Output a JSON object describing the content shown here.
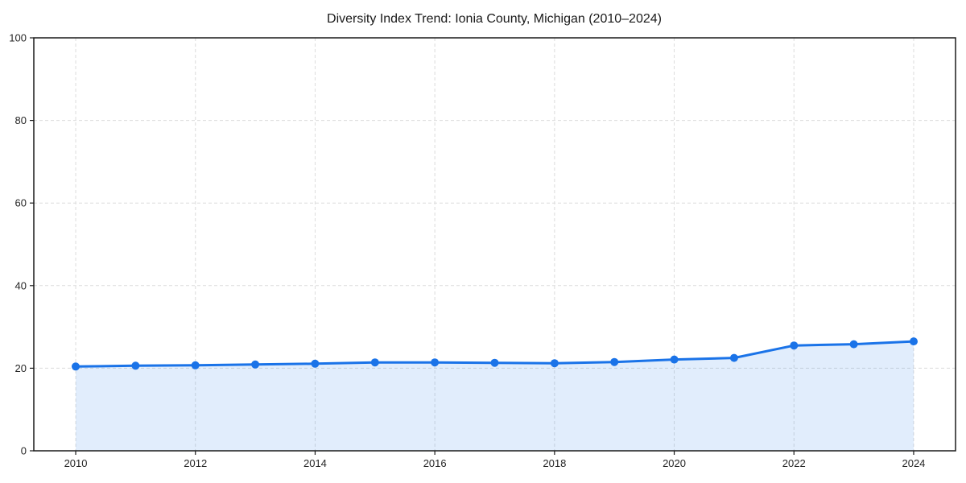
{
  "chart_data": {
    "type": "line",
    "title": "Diversity Index Trend: Ionia County, Michigan (2010–2024)",
    "xlabel": "",
    "ylabel": "",
    "x": [
      2010,
      2011,
      2012,
      2013,
      2014,
      2015,
      2016,
      2017,
      2018,
      2019,
      2020,
      2021,
      2022,
      2023,
      2024
    ],
    "series": [
      {
        "name": "Diversity Index",
        "values": [
          20.4,
          20.6,
          20.7,
          20.9,
          21.1,
          21.4,
          21.4,
          21.3,
          21.2,
          21.5,
          22.1,
          22.5,
          25.5,
          25.8,
          26.5
        ]
      }
    ],
    "xticks": [
      2010,
      2012,
      2014,
      2016,
      2018,
      2020,
      2022,
      2024
    ],
    "yticks": [
      0,
      20,
      40,
      60,
      80,
      100
    ],
    "xlim": [
      2009.3,
      2024.7
    ],
    "ylim": [
      0,
      100
    ],
    "grid": "dashed-both-axes",
    "legend": "none",
    "marker": "circle",
    "area_fill": true,
    "colors": {
      "line": "#1a73e8",
      "marker": "#1a73e8",
      "fill": "rgba(26,115,232,0.13)",
      "grid": "#dcdcdc",
      "spine": "#1a1a1a",
      "tick_text": "#262626",
      "title_text": "#1a1a1a",
      "background": "#ffffff"
    }
  }
}
